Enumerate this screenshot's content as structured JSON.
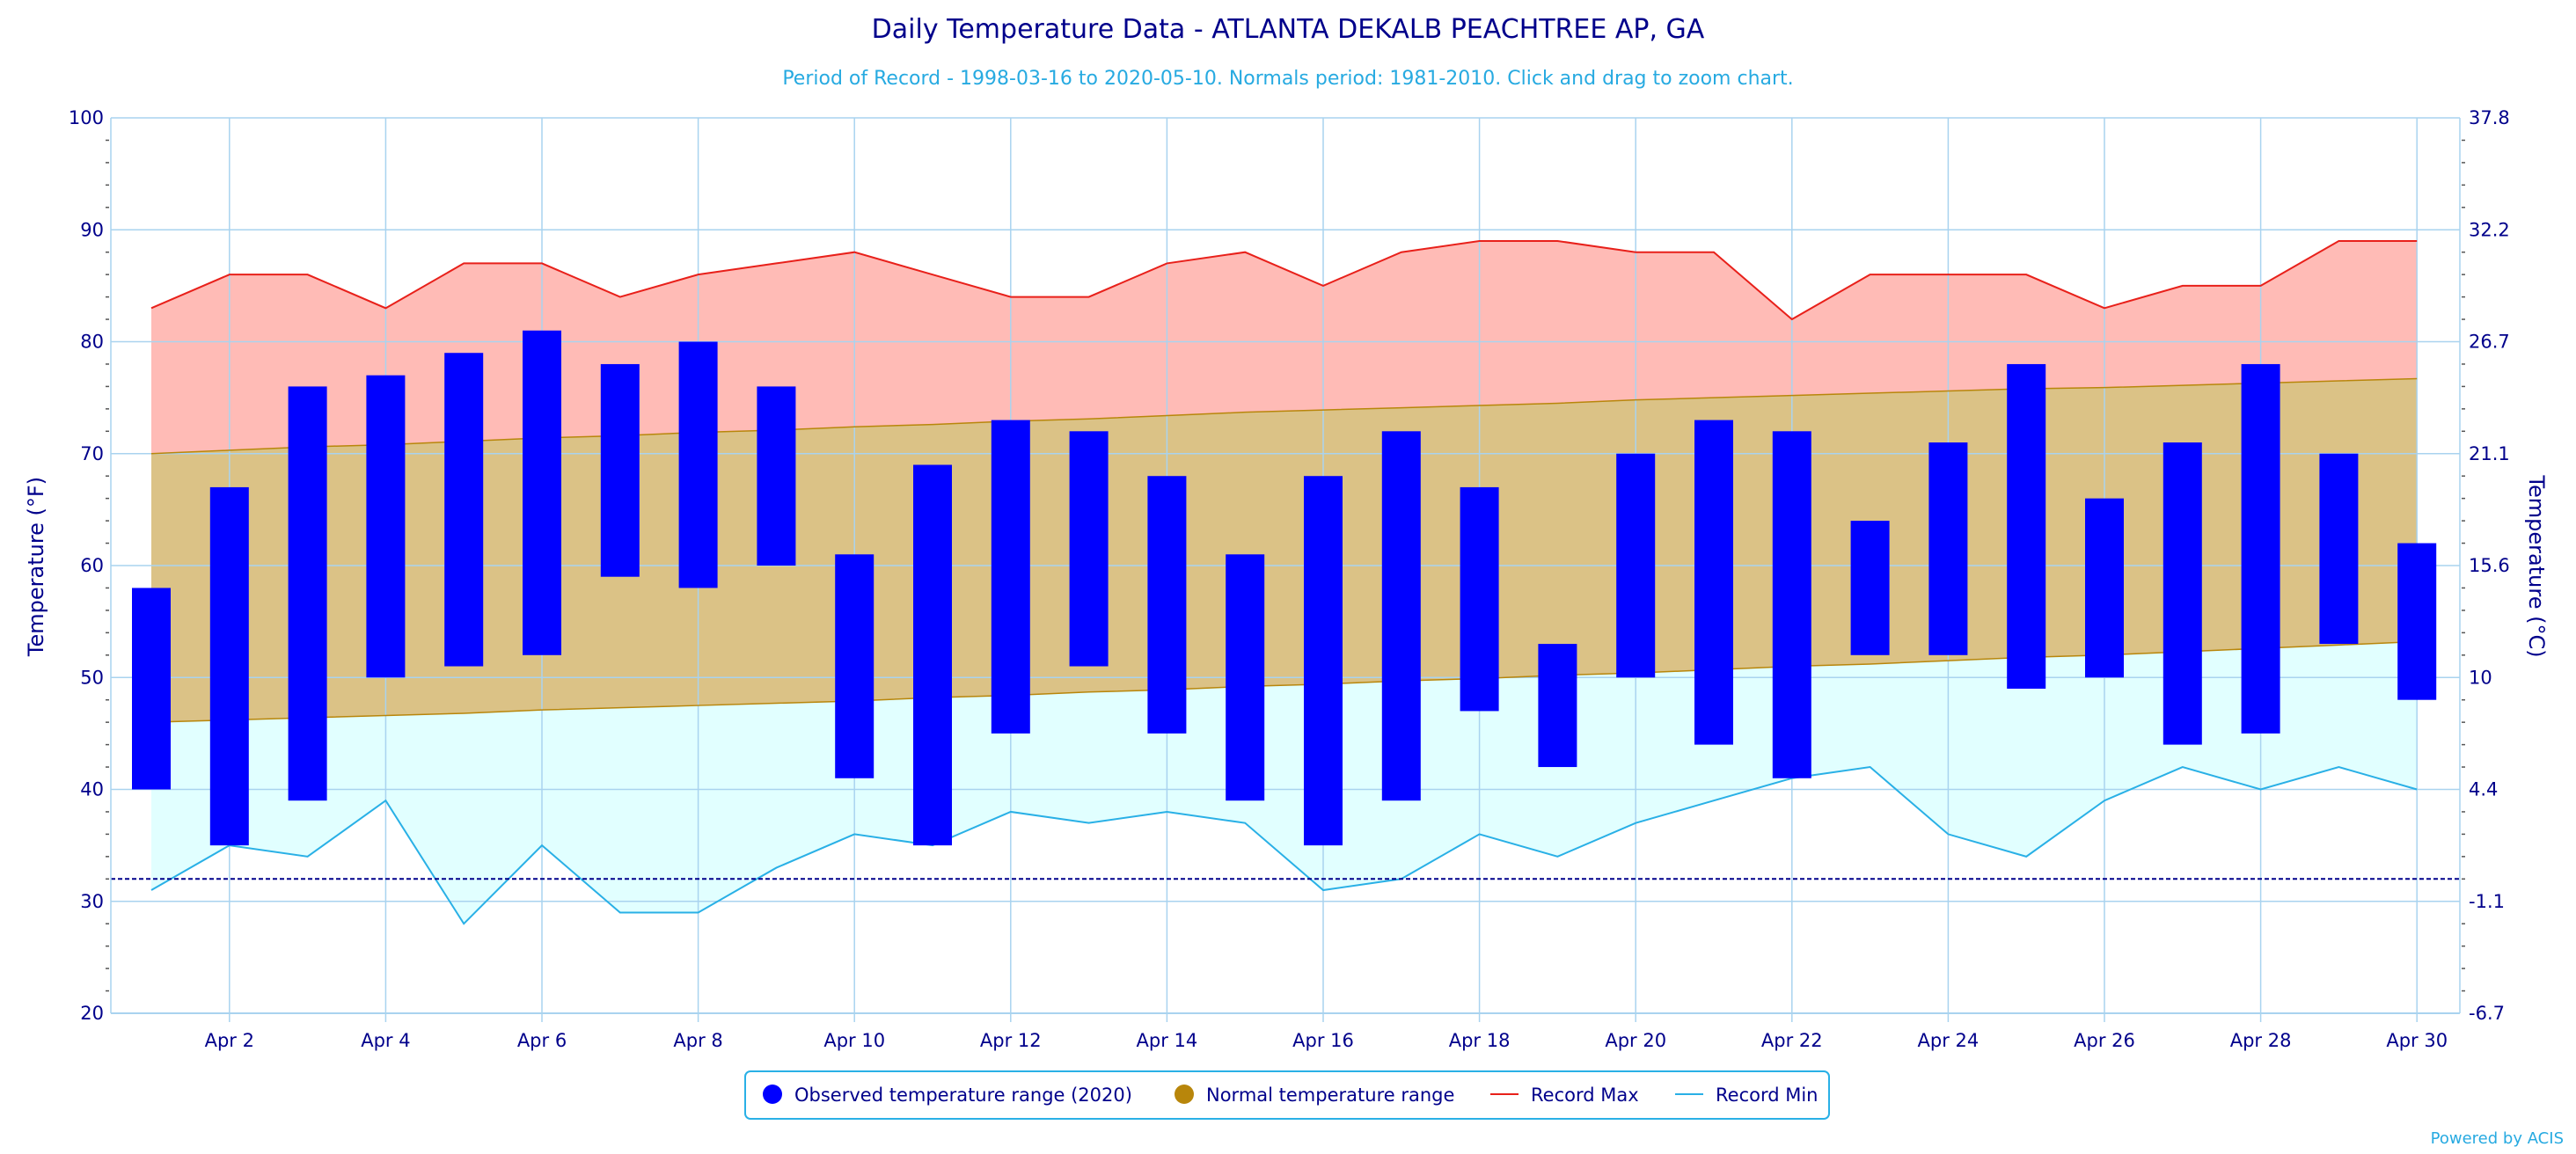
{
  "chart_data": {
    "type": "area",
    "title": "Daily Temperature Data - ATLANTA DEKALB PEACHTREE AP, GA",
    "subtitle": "Period of Record - 1998-03-16 to 2020-05-10. Normals period: 1981-2010. Click and drag to zoom chart.",
    "ylabel": "Temperature (°F)",
    "y2label": "Temperature (°C)",
    "ylim": [
      20,
      100
    ],
    "y_ticks": [
      20,
      30,
      40,
      50,
      60,
      70,
      80,
      90,
      100
    ],
    "y_tick_labels": [
      "20",
      "30",
      "40",
      "50",
      "60",
      "70",
      "80",
      "90",
      "100"
    ],
    "y2_tick_labels": [
      "-6.7",
      "-1.1",
      "4.4",
      "10",
      "15.6",
      "21.1",
      "26.7",
      "32.2",
      "37.8"
    ],
    "x_days": [
      1,
      2,
      3,
      4,
      5,
      6,
      7,
      8,
      9,
      10,
      11,
      12,
      13,
      14,
      15,
      16,
      17,
      18,
      19,
      20,
      21,
      22,
      23,
      24,
      25,
      26,
      27,
      28,
      29,
      30
    ],
    "x_tick_days": [
      2,
      4,
      6,
      8,
      10,
      12,
      14,
      16,
      18,
      20,
      22,
      24,
      26,
      28,
      30
    ],
    "x_tick_labels": [
      "Apr 2",
      "Apr 4",
      "Apr 6",
      "Apr 8",
      "Apr 10",
      "Apr 12",
      "Apr 14",
      "Apr 16",
      "Apr 18",
      "Apr 20",
      "Apr 22",
      "Apr 24",
      "Apr 26",
      "Apr 28",
      "Apr 30"
    ],
    "freeze_line": 32,
    "grid": true,
    "legend_position": "bottom-center",
    "colors": {
      "observed": "#0000ff",
      "normal_fill": "#dbc286",
      "normal_line": "#b8860b",
      "legend_normal_dot": "#b8860b",
      "record_max_line": "#e8201a",
      "record_max_fill": "#ffbbb6",
      "record_min_line": "#29b0e6",
      "record_min_fill": "#e1ffff",
      "grid": "#a9d3ef",
      "freeze": "#00008b"
    },
    "series": [
      {
        "name": "Observed temperature range (2020)",
        "type": "columnrange",
        "high": [
          58,
          67,
          76,
          77,
          79,
          81,
          78,
          80,
          76,
          61,
          69,
          73,
          72,
          68,
          61,
          68,
          72,
          67,
          53,
          70,
          73,
          72,
          64,
          71,
          78,
          66,
          71,
          78,
          70,
          62
        ],
        "low": [
          40,
          35,
          39,
          50,
          51,
          52,
          59,
          58,
          60,
          41,
          35,
          45,
          51,
          45,
          39,
          35,
          39,
          47,
          42,
          50,
          44,
          41,
          52,
          52,
          49,
          50,
          44,
          45,
          53,
          48
        ]
      },
      {
        "name": "Normal temperature range",
        "type": "arearange",
        "high": [
          70,
          70.3,
          70.6,
          70.8,
          71.1,
          71.4,
          71.6,
          71.9,
          72.1,
          72.4,
          72.6,
          72.9,
          73.1,
          73.4,
          73.7,
          73.9,
          74.1,
          74.3,
          74.5,
          74.8,
          75.0,
          75.2,
          75.4,
          75.6,
          75.8,
          75.9,
          76.1,
          76.3,
          76.5,
          76.7
        ],
        "low": [
          46,
          46.2,
          46.4,
          46.6,
          46.8,
          47.1,
          47.3,
          47.5,
          47.7,
          47.9,
          48.2,
          48.4,
          48.7,
          48.9,
          49.2,
          49.4,
          49.7,
          49.9,
          50.2,
          50.4,
          50.7,
          51.0,
          51.2,
          51.5,
          51.8,
          52.0,
          52.3,
          52.6,
          52.9,
          53.2
        ]
      },
      {
        "name": "Record Max",
        "type": "line",
        "values": [
          83,
          86,
          86,
          83,
          87,
          87,
          84,
          86,
          87,
          88,
          86,
          84,
          84,
          87,
          88,
          85,
          88,
          89,
          89,
          88,
          88,
          82,
          86,
          86,
          86,
          83,
          85,
          85,
          89,
          89
        ]
      },
      {
        "name": "Record Min",
        "type": "line",
        "values": [
          31,
          35,
          34,
          39,
          28,
          35,
          29,
          29,
          33,
          36,
          35,
          38,
          37,
          38,
          37,
          31,
          32,
          36,
          34,
          37,
          39,
          41,
          42,
          36,
          34,
          39,
          42,
          40,
          42,
          40
        ]
      }
    ],
    "credit": "Powered by ACIS"
  }
}
